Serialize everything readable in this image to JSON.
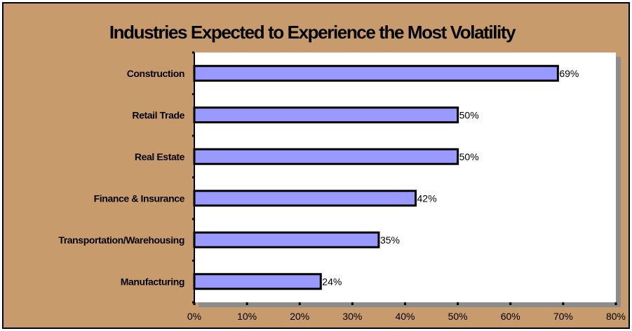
{
  "colors": {
    "background": "#c89b6c",
    "plot_area": "#ffffff",
    "plot_shadow": "#8c8c8c",
    "bar_fill": "#9999ff",
    "bar_stroke": "#000000"
  },
  "chart_data": {
    "type": "bar",
    "orientation": "horizontal",
    "title": "Industries Expected to Experience the Most Volatility",
    "xlabel": "",
    "ylabel": "",
    "categories": [
      "Construction",
      "Retail Trade",
      "Real Estate",
      "Finance & Insurance",
      "Transportation/Warehousing",
      "Manufacturing"
    ],
    "values": [
      69,
      50,
      50,
      42,
      35,
      24
    ],
    "data_labels": [
      "69%",
      "50%",
      "50%",
      "42%",
      "35%",
      "24%"
    ],
    "xlim": [
      0,
      80
    ],
    "x_ticks": [
      0,
      10,
      20,
      30,
      40,
      50,
      60,
      70,
      80
    ],
    "x_tick_labels": [
      "0%",
      "10%",
      "20%",
      "30%",
      "40%",
      "50%",
      "60%",
      "70%",
      "80%"
    ],
    "grid": false,
    "legend": "none"
  }
}
